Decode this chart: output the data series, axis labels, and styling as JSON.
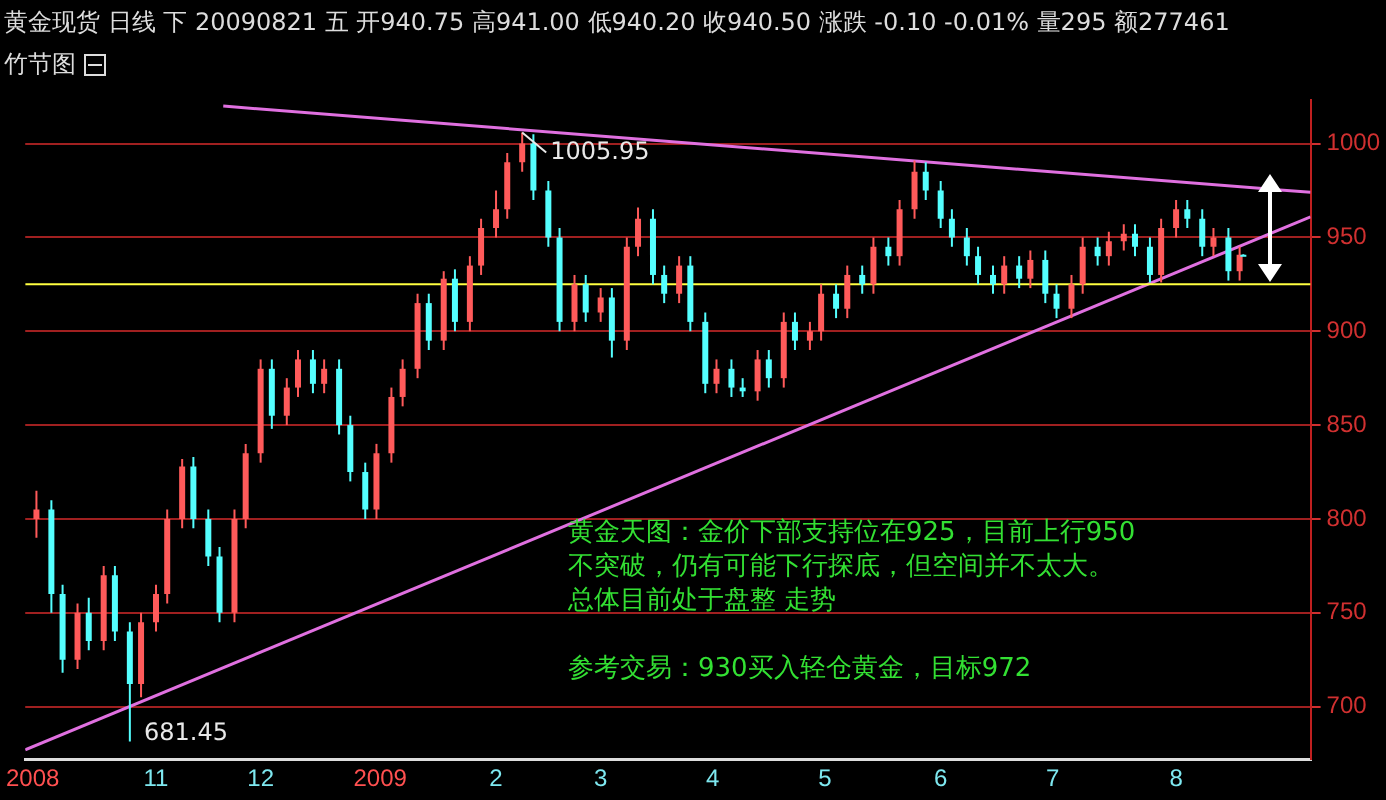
{
  "chart_data": {
    "type": "candlestick",
    "title": "黄金现货 日线 下 20090821 五 开940.75 高941.00 低940.20 收940.50 涨跌 -0.10 -0.01% 量295 额277461",
    "subtitle": "竹节图",
    "x": [
      "2008-10-02",
      "2008-10-06",
      "2008-10-09",
      "2008-10-13",
      "2008-10-16",
      "2008-10-20",
      "2008-10-23",
      "2008-10-27",
      "2008-10-30",
      "2008-11-03",
      "2008-11-06",
      "2008-11-10",
      "2008-11-13",
      "2008-11-17",
      "2008-11-20",
      "2008-11-24",
      "2008-11-27",
      "2008-12-01",
      "2008-12-04",
      "2008-12-08",
      "2008-12-11",
      "2008-12-15",
      "2008-12-18",
      "2008-12-22",
      "2008-12-25",
      "2008-12-29",
      "2009-01-01",
      "2009-01-05",
      "2009-01-08",
      "2009-01-12",
      "2009-01-15",
      "2009-01-19",
      "2009-01-22",
      "2009-01-26",
      "2009-01-29",
      "2009-02-02",
      "2009-02-05",
      "2009-02-09",
      "2009-02-12",
      "2009-02-16",
      "2009-02-19",
      "2009-02-23",
      "2009-02-26",
      "2009-03-02",
      "2009-03-05",
      "2009-03-09",
      "2009-03-12",
      "2009-03-16",
      "2009-03-19",
      "2009-03-23",
      "2009-03-26",
      "2009-03-30",
      "2009-04-02",
      "2009-04-06",
      "2009-04-09",
      "2009-04-13",
      "2009-04-16",
      "2009-04-20",
      "2009-04-23",
      "2009-04-27",
      "2009-04-30",
      "2009-05-04",
      "2009-05-07",
      "2009-05-11",
      "2009-05-14",
      "2009-05-18",
      "2009-05-21",
      "2009-05-25",
      "2009-05-28",
      "2009-06-01",
      "2009-06-04",
      "2009-06-08",
      "2009-06-11",
      "2009-06-15",
      "2009-06-18",
      "2009-06-22",
      "2009-06-25",
      "2009-06-29",
      "2009-07-02",
      "2009-07-06",
      "2009-07-09",
      "2009-07-13",
      "2009-07-16",
      "2009-07-20",
      "2009-07-23",
      "2009-07-27",
      "2009-07-30",
      "2009-08-03",
      "2009-08-06",
      "2009-08-10",
      "2009-08-13",
      "2009-08-17",
      "2009-08-20",
      "2009-08-21"
    ],
    "ohlc": [
      [
        800,
        815,
        790,
        805
      ],
      [
        805,
        810,
        750,
        760
      ],
      [
        760,
        765,
        718,
        725
      ],
      [
        725,
        755,
        720,
        750
      ],
      [
        750,
        758,
        730,
        735
      ],
      [
        735,
        775,
        730,
        770
      ],
      [
        770,
        775,
        735,
        740
      ],
      [
        740,
        745,
        681.45,
        712
      ],
      [
        712,
        750,
        705,
        745
      ],
      [
        745,
        765,
        740,
        760
      ],
      [
        760,
        805,
        755,
        800
      ],
      [
        800,
        832,
        795,
        828
      ],
      [
        828,
        833,
        795,
        800
      ],
      [
        800,
        805,
        775,
        780
      ],
      [
        780,
        785,
        745,
        750
      ],
      [
        750,
        805,
        745,
        800
      ],
      [
        800,
        840,
        795,
        835
      ],
      [
        835,
        885,
        830,
        880
      ],
      [
        880,
        885,
        848,
        855
      ],
      [
        855,
        875,
        850,
        870
      ],
      [
        870,
        890,
        865,
        885
      ],
      [
        885,
        890,
        867,
        872
      ],
      [
        872,
        885,
        867,
        880
      ],
      [
        880,
        885,
        845,
        850
      ],
      [
        850,
        855,
        820,
        825
      ],
      [
        825,
        830,
        800,
        805
      ],
      [
        805,
        840,
        800,
        835
      ],
      [
        835,
        870,
        830,
        865
      ],
      [
        865,
        885,
        860,
        880
      ],
      [
        880,
        920,
        875,
        915
      ],
      [
        915,
        920,
        890,
        895
      ],
      [
        895,
        932,
        890,
        928
      ],
      [
        928,
        933,
        900,
        905
      ],
      [
        905,
        940,
        900,
        935
      ],
      [
        935,
        960,
        930,
        955
      ],
      [
        955,
        975,
        950,
        965
      ],
      [
        965,
        995,
        960,
        990
      ],
      [
        990,
        1005.95,
        985,
        1000
      ],
      [
        1000,
        1005,
        970,
        975
      ],
      [
        975,
        980,
        945,
        950
      ],
      [
        950,
        955,
        900,
        905
      ],
      [
        905,
        930,
        900,
        925
      ],
      [
        925,
        930,
        905,
        910
      ],
      [
        910,
        923,
        905,
        918
      ],
      [
        918,
        923,
        886,
        895
      ],
      [
        895,
        950,
        890,
        945
      ],
      [
        945,
        966,
        940,
        960
      ],
      [
        960,
        965,
        925,
        930
      ],
      [
        930,
        935,
        915,
        920
      ],
      [
        920,
        940,
        915,
        935
      ],
      [
        935,
        940,
        900,
        905
      ],
      [
        905,
        910,
        867,
        872
      ],
      [
        872,
        885,
        867,
        880
      ],
      [
        880,
        885,
        865,
        870
      ],
      [
        870,
        875,
        865,
        868
      ],
      [
        868,
        890,
        863,
        885
      ],
      [
        885,
        890,
        870,
        875
      ],
      [
        875,
        910,
        870,
        905
      ],
      [
        905,
        910,
        890,
        895
      ],
      [
        895,
        905,
        890,
        900
      ],
      [
        900,
        925,
        895,
        920
      ],
      [
        920,
        925,
        907,
        912
      ],
      [
        912,
        935,
        907,
        930
      ],
      [
        930,
        935,
        920,
        925
      ],
      [
        925,
        950,
        920,
        945
      ],
      [
        945,
        950,
        935,
        940
      ],
      [
        940,
        970,
        935,
        965
      ],
      [
        965,
        991,
        960,
        985
      ],
      [
        985,
        990,
        970,
        975
      ],
      [
        975,
        980,
        955,
        960
      ],
      [
        960,
        965,
        945,
        950
      ],
      [
        950,
        955,
        935,
        940
      ],
      [
        940,
        945,
        925,
        930
      ],
      [
        930,
        935,
        920,
        925
      ],
      [
        925,
        940,
        920,
        935
      ],
      [
        935,
        940,
        923,
        928
      ],
      [
        928,
        943,
        923,
        938
      ],
      [
        938,
        943,
        915,
        920
      ],
      [
        920,
        925,
        907,
        912
      ],
      [
        912,
        930,
        907,
        925
      ],
      [
        925,
        950,
        920,
        945
      ],
      [
        945,
        950,
        935,
        940
      ],
      [
        940,
        953,
        935,
        948
      ],
      [
        948,
        957,
        943,
        952
      ],
      [
        952,
        957,
        940,
        945
      ],
      [
        945,
        950,
        926,
        930
      ],
      [
        930,
        960,
        926,
        955
      ],
      [
        955,
        970,
        950,
        965
      ],
      [
        965,
        970,
        955,
        960
      ],
      [
        960,
        965,
        940,
        945
      ],
      [
        945,
        955,
        940,
        950
      ],
      [
        950,
        955,
        927,
        932
      ],
      [
        932,
        945,
        927,
        940.75
      ],
      [
        940.75,
        941,
        940.2,
        940.5
      ]
    ],
    "series": [
      {
        "type": "line",
        "color": "#e070e0",
        "x": [
          "2008-11-21",
          "2009-09-08"
        ],
        "values": [
          1020,
          974
        ]
      },
      {
        "type": "line",
        "color": "#e070e0",
        "x": [
          "2008-09-29",
          "2009-09-08"
        ],
        "values": [
          677,
          961
        ]
      }
    ],
    "xlim": [
      "2008-09-29",
      "2009-09-08"
    ],
    "xticks": [
      {
        "value": "2008-10-01",
        "label": "2008"
      },
      {
        "value": "2008-11-03",
        "label": "11"
      },
      {
        "value": "2008-12-01",
        "label": "12"
      },
      {
        "value": "2009-01-02",
        "label": "2009"
      },
      {
        "value": "2009-02-02",
        "label": "2"
      },
      {
        "value": "2009-03-02",
        "label": "3"
      },
      {
        "value": "2009-04-01",
        "label": "4"
      },
      {
        "value": "2009-05-01",
        "label": "5"
      },
      {
        "value": "2009-06-01",
        "label": "6"
      },
      {
        "value": "2009-07-01",
        "label": "7"
      },
      {
        "value": "2009-08-03",
        "label": "8"
      }
    ],
    "ylim": [
      672,
      1023
    ],
    "yticks": [
      700,
      750,
      800,
      850,
      900,
      950,
      1000
    ],
    "ref_lines": [
      {
        "axis": "y",
        "value": 925,
        "color": "#ffff40"
      }
    ],
    "annotations": [
      {
        "text": "1005.95",
        "x": "2009-02-09",
        "y": 1005.95
      },
      "681.45",
      "黄金天图：金价下部支持位在925，目前上行950",
      "不突破，仍有可能下行探底，但空间并不太大。",
      "总体目前处于盘整 走势",
      "参考交易：930买入轻仓黄金，目标972"
    ],
    "grid": "y",
    "line_style": "solid",
    "legend": false
  }
}
